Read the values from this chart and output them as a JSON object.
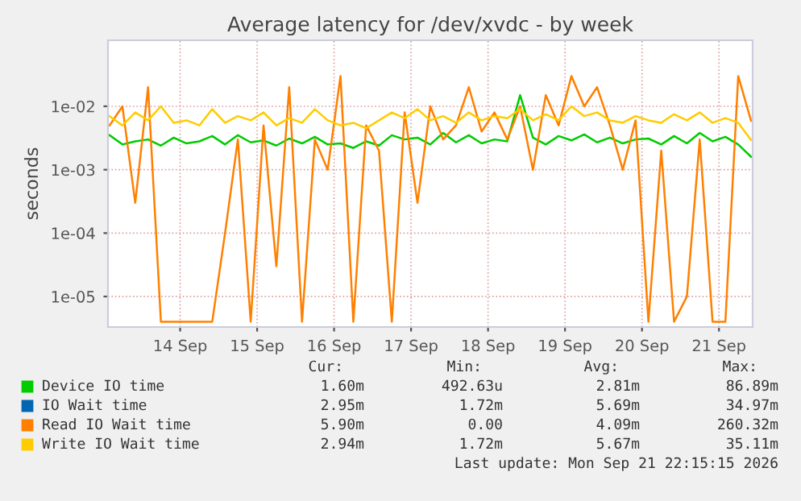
{
  "chart_data": {
    "type": "line",
    "title": "Average latency for /dev/xvdc - by week",
    "ylabel": "seconds",
    "log": true,
    "grid": true,
    "legend": "bottom",
    "x": [
      "2026-09-13T02:00",
      "2026-09-13T06:00",
      "2026-09-13T10:00",
      "2026-09-13T14:00",
      "2026-09-13T18:00",
      "2026-09-13T22:00",
      "2026-09-14T02:00",
      "2026-09-14T06:00",
      "2026-09-14T10:00",
      "2026-09-14T14:00",
      "2026-09-14T18:00",
      "2026-09-14T22:00",
      "2026-09-15T02:00",
      "2026-09-15T06:00",
      "2026-09-15T10:00",
      "2026-09-15T14:00",
      "2026-09-15T18:00",
      "2026-09-15T22:00",
      "2026-09-16T02:00",
      "2026-09-16T06:00",
      "2026-09-16T10:00",
      "2026-09-16T14:00",
      "2026-09-16T18:00",
      "2026-09-16T22:00",
      "2026-09-17T02:00",
      "2026-09-17T06:00",
      "2026-09-17T10:00",
      "2026-09-17T14:00",
      "2026-09-17T18:00",
      "2026-09-17T22:00",
      "2026-09-18T02:00",
      "2026-09-18T06:00",
      "2026-09-18T10:00",
      "2026-09-18T14:00",
      "2026-09-18T18:00",
      "2026-09-18T22:00",
      "2026-09-19T02:00",
      "2026-09-19T06:00",
      "2026-09-19T10:00",
      "2026-09-19T14:00",
      "2026-09-19T18:00",
      "2026-09-19T22:00",
      "2026-09-20T02:00",
      "2026-09-20T06:00",
      "2026-09-20T10:00",
      "2026-09-20T14:00",
      "2026-09-20T18:00",
      "2026-09-20T22:00",
      "2026-09-21T02:00",
      "2026-09-21T06:00",
      "2026-09-21T10:00"
    ],
    "xlim": [
      "2026-09-13T01:30",
      "2026-09-21T10:30"
    ],
    "xticks": [
      {
        "value": "2026-09-14",
        "label": "14 Sep"
      },
      {
        "value": "2026-09-15",
        "label": "15 Sep"
      },
      {
        "value": "2026-09-16",
        "label": "16 Sep"
      },
      {
        "value": "2026-09-17",
        "label": "17 Sep"
      },
      {
        "value": "2026-09-18",
        "label": "18 Sep"
      },
      {
        "value": "2026-09-19",
        "label": "19 Sep"
      },
      {
        "value": "2026-09-20",
        "label": "20 Sep"
      },
      {
        "value": "2026-09-21",
        "label": "21 Sep"
      }
    ],
    "ylim": [
      3.3e-06,
      0.11
    ],
    "yticks": [
      {
        "value": 1e-05,
        "label": "1e-05"
      },
      {
        "value": 0.0001,
        "label": "1e-04"
      },
      {
        "value": 0.001,
        "label": "1e-03"
      },
      {
        "value": 0.01,
        "label": "1e-02"
      }
    ],
    "series": [
      {
        "name": "Device IO time",
        "color": "#00cc00",
        "values": [
          0.0035,
          0.0025,
          0.0028,
          0.003,
          0.0024,
          0.0032,
          0.0026,
          0.0028,
          0.0034,
          0.0025,
          0.0035,
          0.0027,
          0.0029,
          0.0024,
          0.0031,
          0.0026,
          0.0033,
          0.0025,
          0.0026,
          0.0022,
          0.0028,
          0.0024,
          0.0035,
          0.003,
          0.0032,
          0.0025,
          0.0038,
          0.0027,
          0.0035,
          0.0026,
          0.003,
          0.0028,
          0.015,
          0.0032,
          0.0025,
          0.0034,
          0.0029,
          0.0036,
          0.0027,
          0.0032,
          0.0026,
          0.003,
          0.0031,
          0.0025,
          0.0034,
          0.0026,
          0.0038,
          0.0028,
          0.0033,
          0.0025,
          0.0016
        ]
      },
      {
        "name": "IO Wait time",
        "color": "#0066b3",
        "values": [
          null,
          null,
          null,
          null,
          null,
          null,
          null,
          null,
          null,
          null,
          null,
          null,
          null,
          null,
          null,
          null,
          null,
          null,
          null,
          null,
          null,
          null,
          null,
          null,
          null,
          null,
          null,
          null,
          null,
          null,
          null,
          null,
          null,
          null,
          null,
          null,
          null,
          null,
          null,
          null,
          null,
          null,
          null,
          null,
          null,
          null,
          null,
          null,
          null,
          null,
          null
        ]
      },
      {
        "name": "Read IO Wait time",
        "color": "#ff8000",
        "values": [
          0.005,
          0.01,
          0.0003,
          0.02,
          4e-06,
          4e-06,
          4e-06,
          4e-06,
          4e-06,
          0.0001,
          0.003,
          4e-06,
          0.005,
          3e-05,
          0.02,
          4e-06,
          0.003,
          0.001,
          0.03,
          4e-06,
          0.005,
          0.002,
          4e-06,
          0.008,
          0.0003,
          0.01,
          0.003,
          0.005,
          0.02,
          0.004,
          0.008,
          0.003,
          0.01,
          0.001,
          0.015,
          0.005,
          0.03,
          0.01,
          0.02,
          0.005,
          0.001,
          0.006,
          4e-06,
          0.002,
          4e-06,
          1e-05,
          0.003,
          4e-06,
          4e-06,
          0.03,
          0.0059
        ]
      },
      {
        "name": "Write IO Wait time",
        "color": "#ffcc00",
        "values": [
          0.007,
          0.005,
          0.008,
          0.006,
          0.01,
          0.0055,
          0.006,
          0.005,
          0.009,
          0.0055,
          0.007,
          0.006,
          0.008,
          0.005,
          0.0065,
          0.0055,
          0.009,
          0.006,
          0.005,
          0.0055,
          0.0045,
          0.006,
          0.008,
          0.0065,
          0.009,
          0.006,
          0.007,
          0.0055,
          0.008,
          0.006,
          0.007,
          0.0065,
          0.009,
          0.006,
          0.0075,
          0.006,
          0.01,
          0.007,
          0.008,
          0.006,
          0.0055,
          0.007,
          0.006,
          0.0055,
          0.0075,
          0.006,
          0.008,
          0.0055,
          0.0065,
          0.0055,
          0.00294
        ]
      }
    ],
    "annotations": [
      "Cur:",
      "Min:",
      "Avg:",
      "Max:",
      "1.60m",
      "492.63u",
      "2.81m",
      "86.89m",
      "2.95m",
      "1.72m",
      "5.69m",
      "34.97m",
      "5.90m",
      "0.00",
      "4.09m",
      "260.32m",
      "2.94m",
      "1.72m",
      "5.67m",
      "35.11m",
      "Last update: Mon Sep 21 22:15:15 2026"
    ]
  }
}
